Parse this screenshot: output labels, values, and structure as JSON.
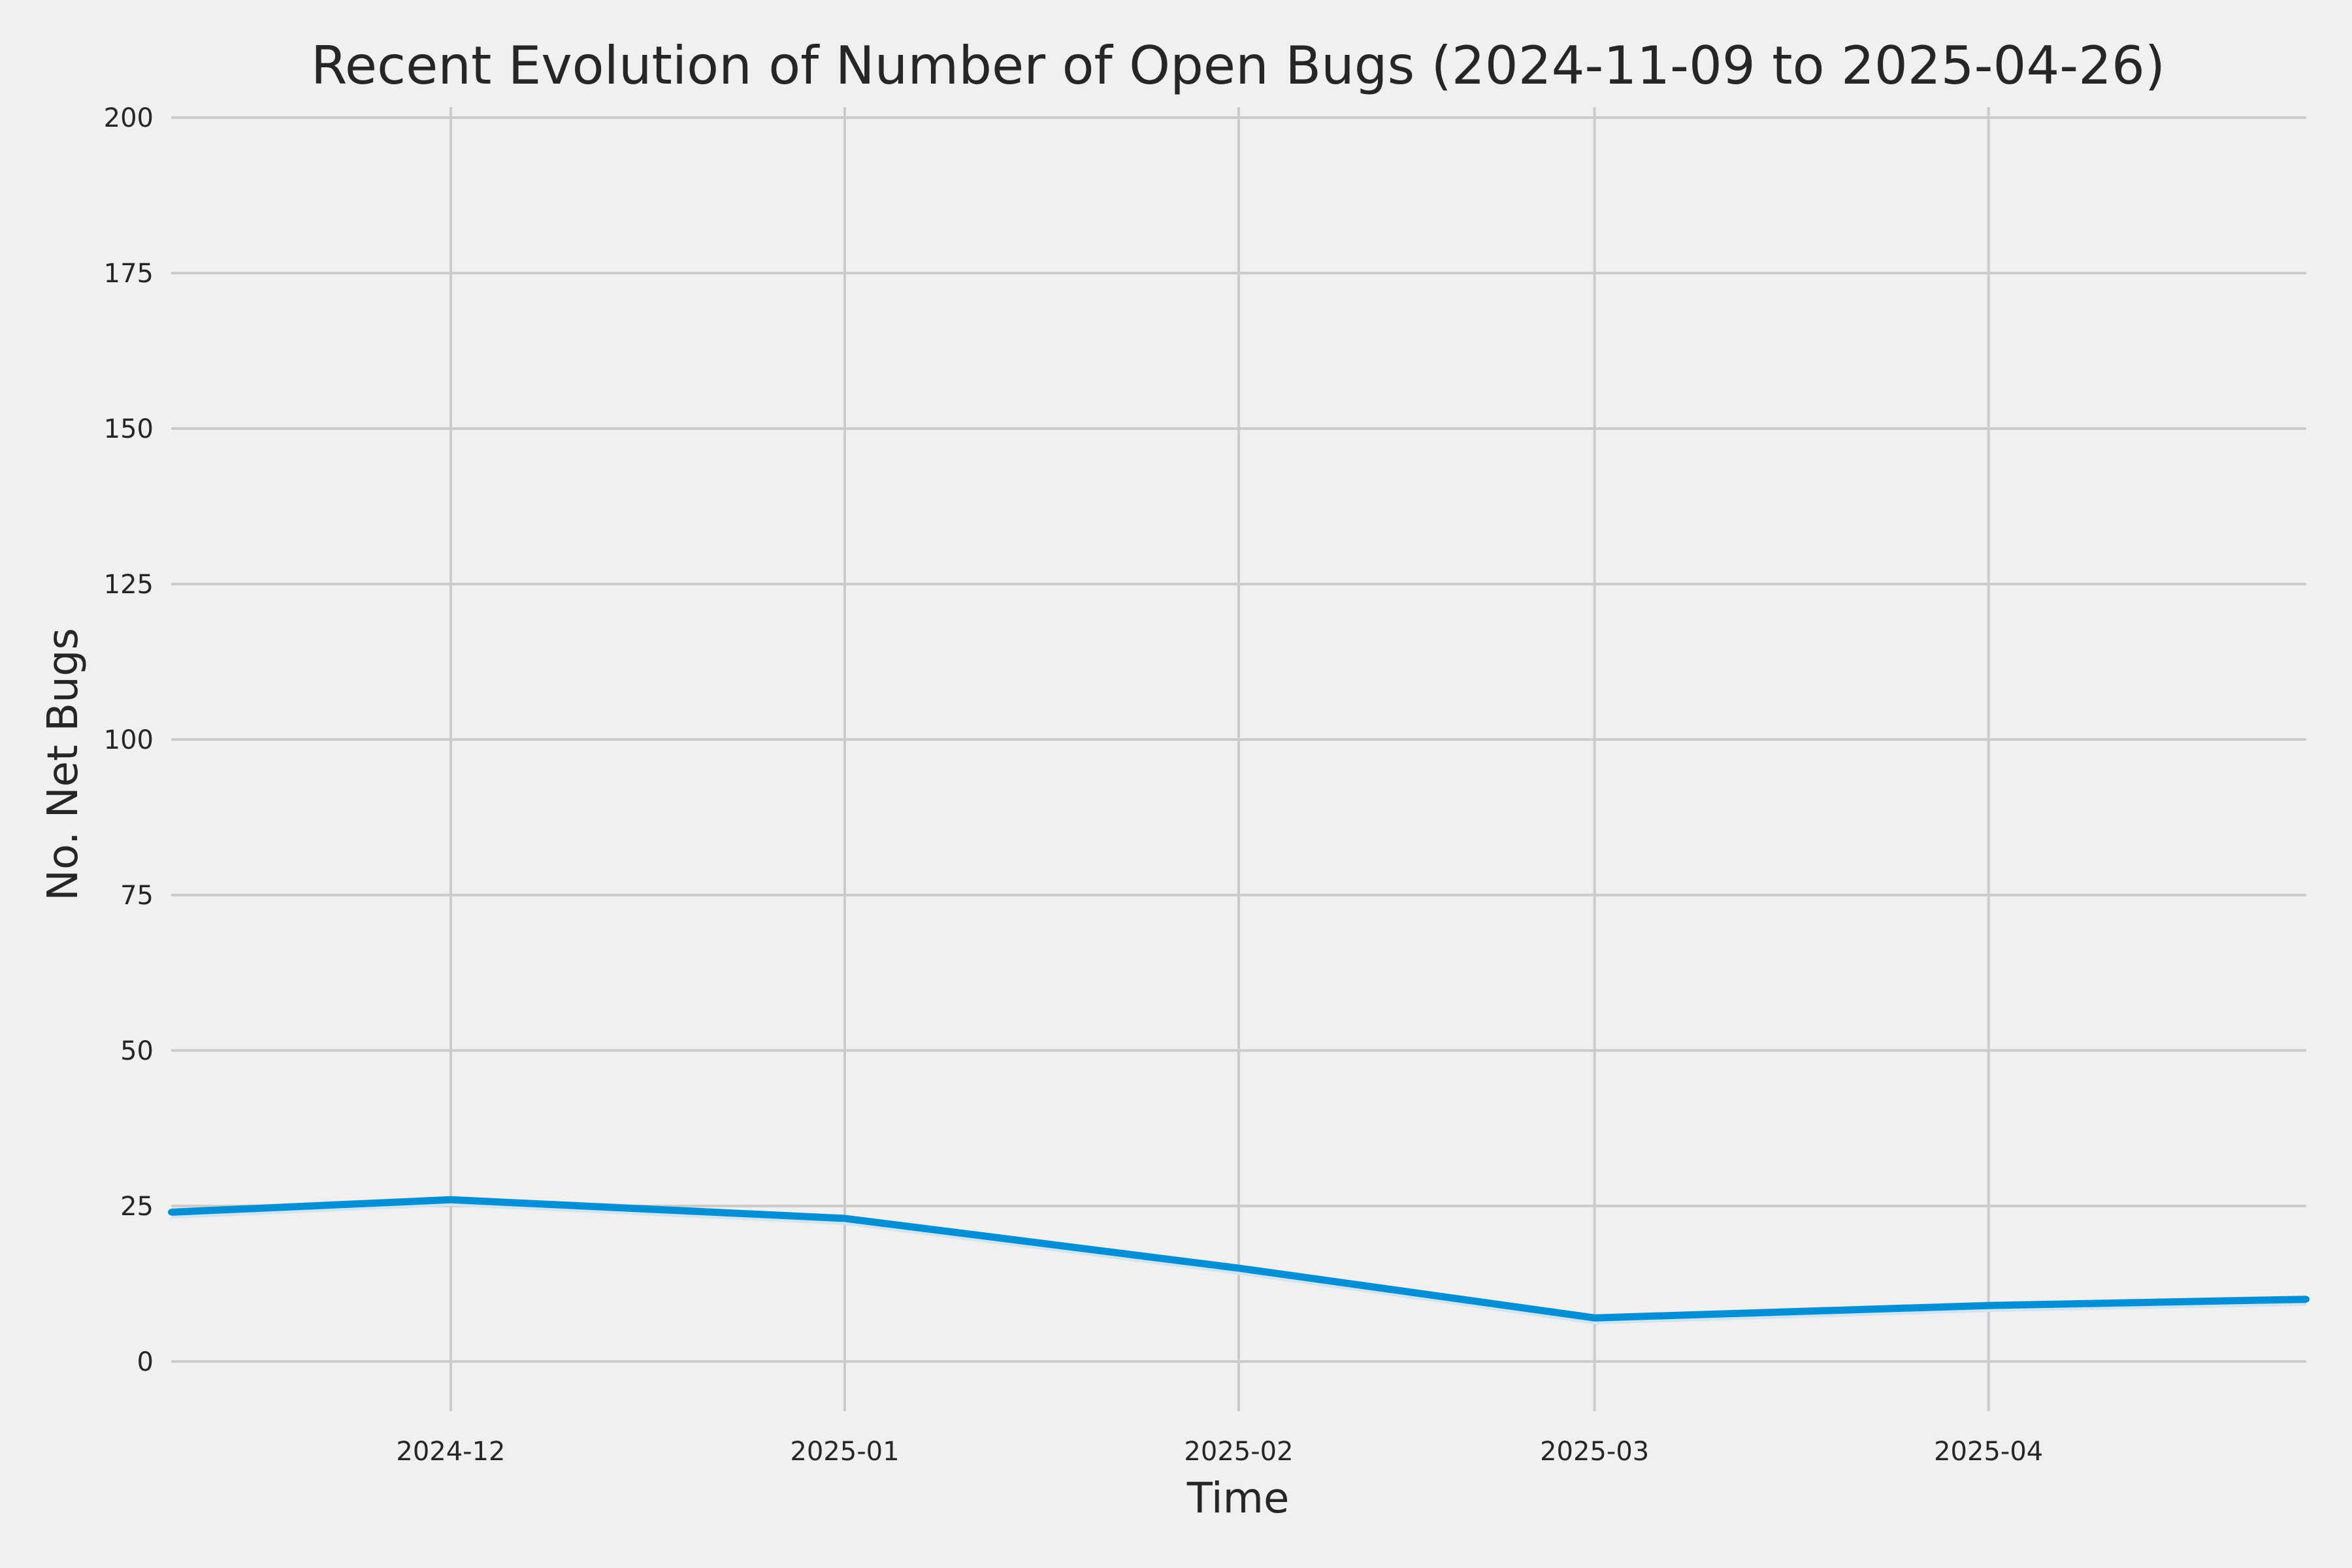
{
  "chart_data": {
    "type": "line",
    "title": "Recent Evolution of Number of Open Bugs (2024-11-09 to 2025-04-26)",
    "xlabel": "Time",
    "ylabel": "No. Net Bugs",
    "x_range": [
      "2024-11-09",
      "2025-04-26"
    ],
    "ylim": [
      -8,
      200
    ],
    "y_ticks": [
      0,
      25,
      50,
      75,
      100,
      125,
      150,
      175,
      200
    ],
    "x_ticks": [
      "2024-12-01",
      "2025-01-01",
      "2025-02-01",
      "2025-03-01",
      "2025-04-01"
    ],
    "x_tick_labels": [
      "2024-12",
      "2025-01",
      "2025-02",
      "2025-03",
      "2025-04"
    ],
    "grid": true,
    "series_color": "#008fd5",
    "x": [
      "2024-11-09",
      "2024-12-01",
      "2025-01-01",
      "2025-02-01",
      "2025-03-01",
      "2025-04-01",
      "2025-04-26"
    ],
    "values": [
      24,
      26,
      23,
      15,
      7,
      9,
      10
    ]
  }
}
